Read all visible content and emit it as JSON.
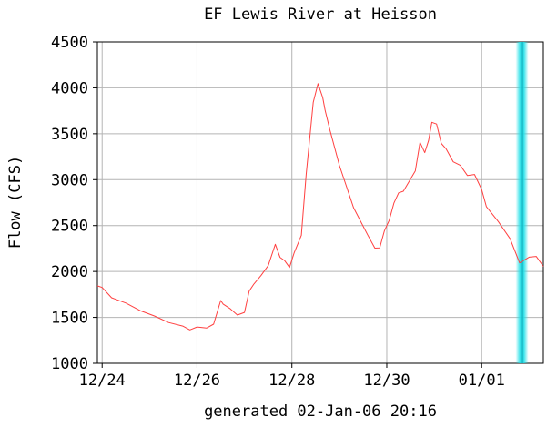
{
  "chart_data": {
    "type": "line",
    "title": "EF Lewis River at Heisson",
    "ylabel": "Flow (CFS)",
    "xlabel": "generated 02-Jan-06 20:16",
    "ylim": [
      1000,
      4500
    ],
    "yticks": [
      1000,
      1500,
      2000,
      2500,
      3000,
      3500,
      4000,
      4500
    ],
    "x_unit": "days since 12/24 00:00",
    "xlim": [
      -0.1,
      9.3
    ],
    "xticks": [
      {
        "x": 0,
        "label": "12/24"
      },
      {
        "x": 2,
        "label": "12/26"
      },
      {
        "x": 4,
        "label": "12/28"
      },
      {
        "x": 6,
        "label": "12/30"
      },
      {
        "x": 8,
        "label": "01/01"
      }
    ],
    "grid": true,
    "series_color": "#ff4040",
    "highlight_color": "#22e0e8",
    "highlight_x": 8.85,
    "series": [
      {
        "x": [
          -0.1,
          0,
          0.2,
          0.5,
          0.8,
          1.1,
          1.4,
          1.7,
          1.85,
          2.0,
          2.2,
          2.35,
          2.5,
          2.55,
          2.7,
          2.85,
          3.0,
          3.1,
          3.2,
          3.35,
          3.5,
          3.65,
          3.75,
          3.85,
          3.95,
          4.05,
          4.2,
          4.3,
          4.45,
          4.55,
          4.65,
          4.7,
          4.8,
          5.0,
          5.3,
          5.6,
          5.75,
          5.85,
          5.95,
          6.05,
          6.15,
          6.25,
          6.35,
          6.5,
          6.6,
          6.7,
          6.8,
          6.88,
          6.95,
          7.05,
          7.15,
          7.25,
          7.4,
          7.55,
          7.7,
          7.85,
          8.0,
          8.1,
          8.35,
          8.6,
          8.8,
          9.0,
          9.15,
          9.3
        ],
        "y": [
          1850,
          1820,
          1720,
          1650,
          1580,
          1510,
          1450,
          1400,
          1370,
          1390,
          1390,
          1420,
          1690,
          1640,
          1600,
          1520,
          1560,
          1780,
          1870,
          1950,
          2070,
          2290,
          2160,
          2110,
          2050,
          2200,
          2400,
          3050,
          3850,
          4040,
          3900,
          3750,
          3550,
          3150,
          2700,
          2390,
          2260,
          2250,
          2450,
          2550,
          2750,
          2850,
          2880,
          3000,
          3100,
          3400,
          3300,
          3420,
          3630,
          3600,
          3400,
          3330,
          3200,
          3150,
          3050,
          3050,
          2900,
          2700,
          2550,
          2350,
          2100,
          2150,
          2170,
          2050
        ]
      }
    ]
  }
}
